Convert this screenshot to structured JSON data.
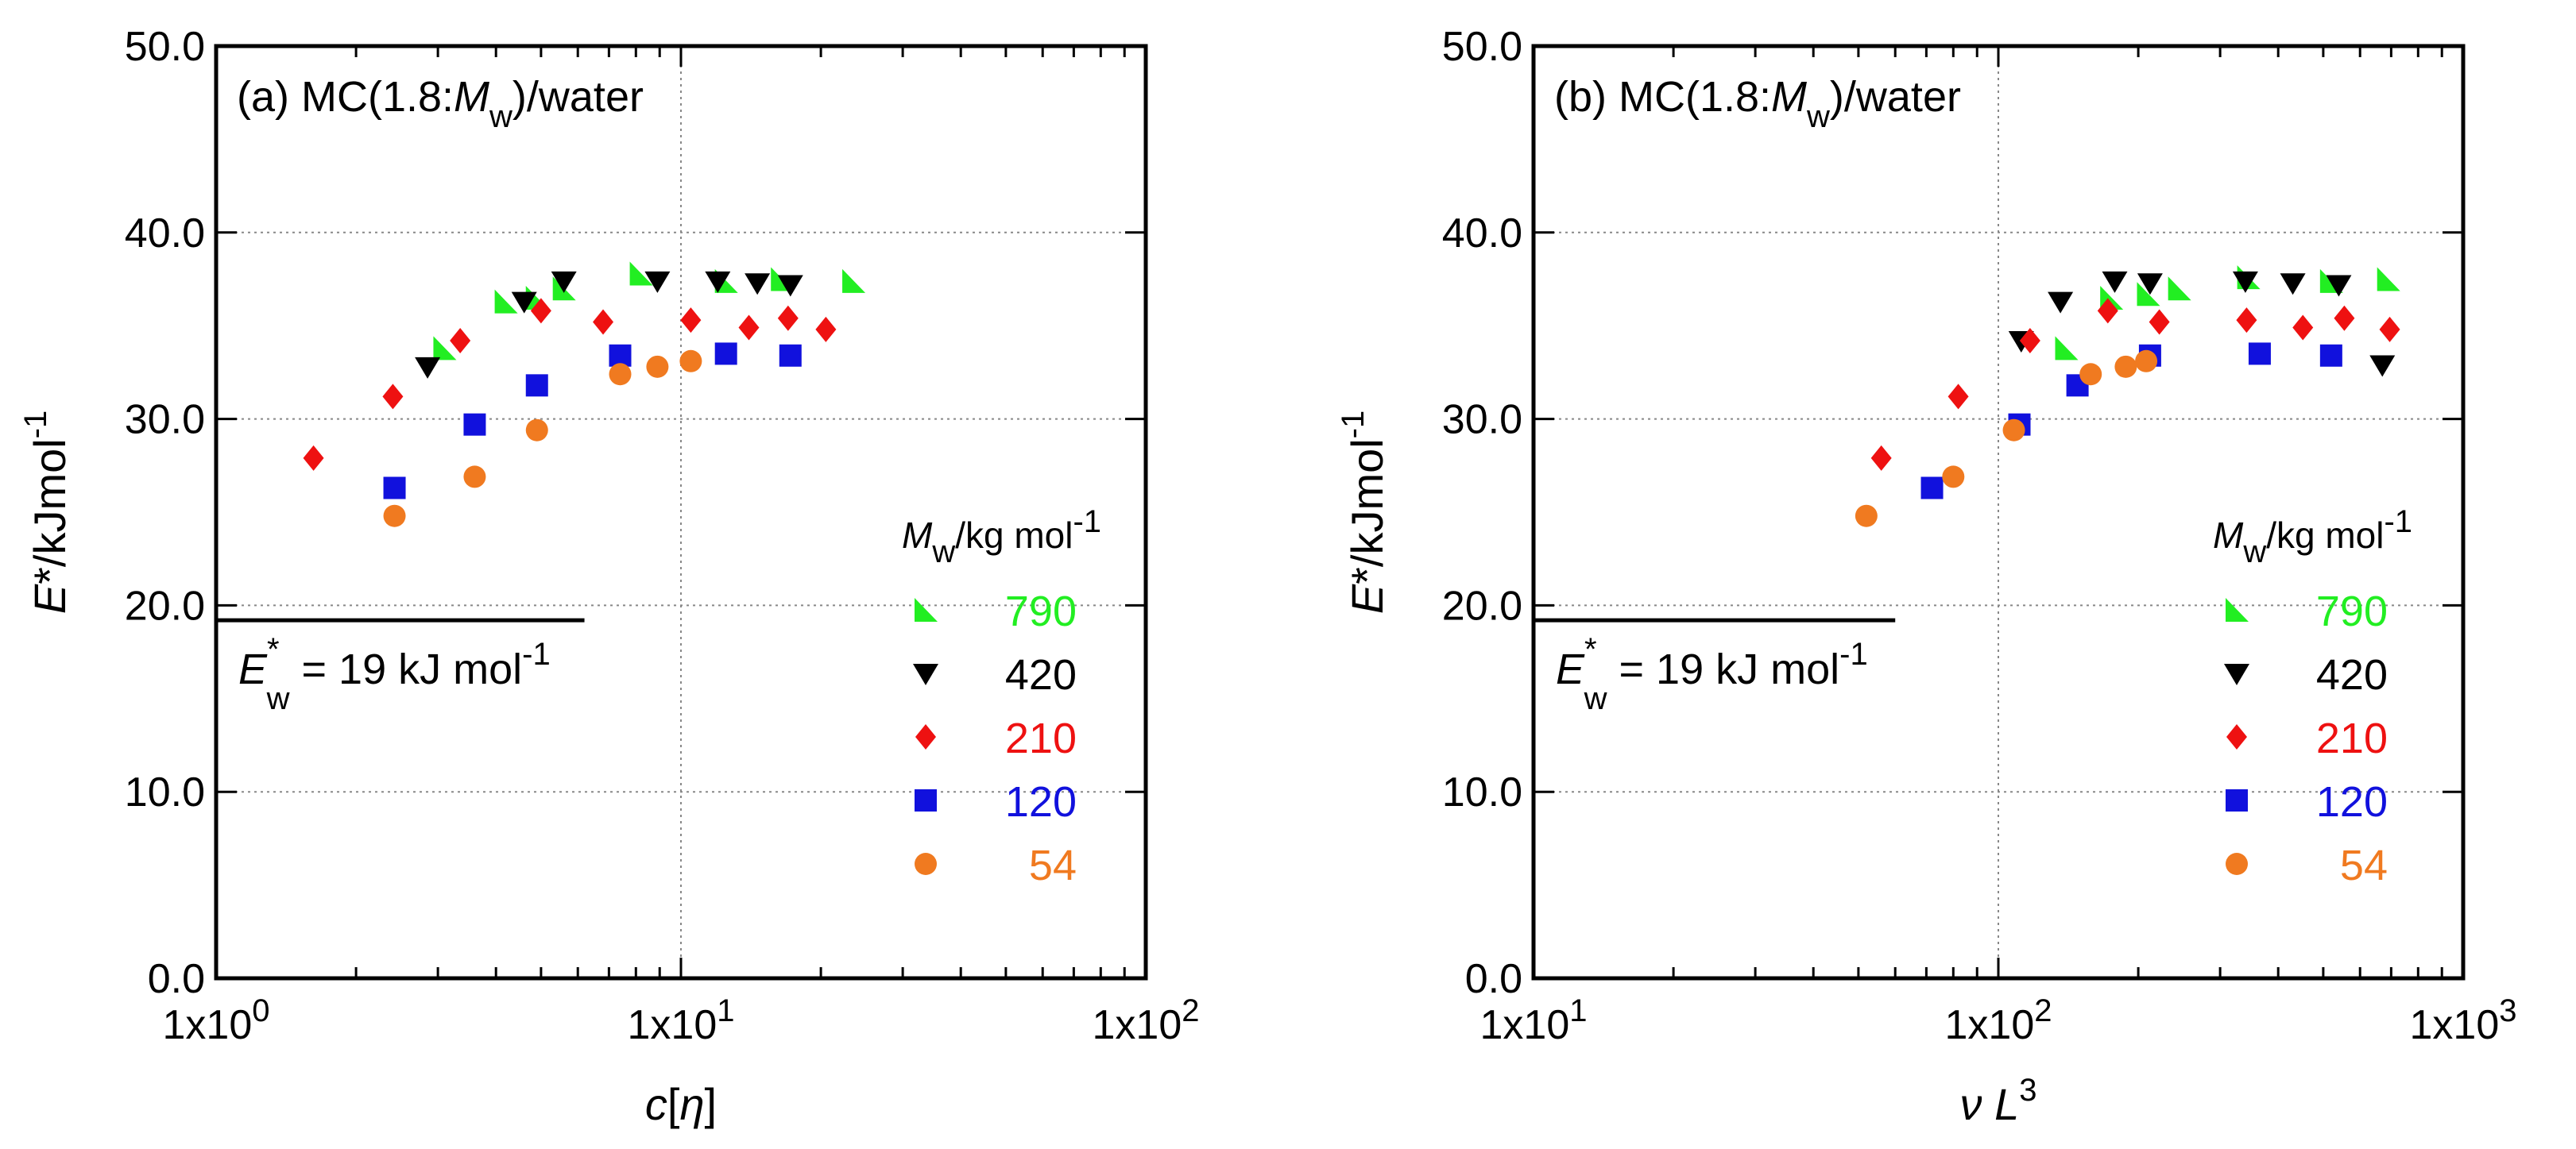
{
  "chart_data": [
    {
      "type": "scatter",
      "panel_label": "(a) MC(1.8:",
      "panel_label_var": "M",
      "panel_label_sub": "w",
      "panel_label_end": ")/water",
      "x_scale": "log",
      "xlim": [
        1,
        100
      ],
      "ylim": [
        0,
        50
      ],
      "xlabel": "c[",
      "xlabel_var": "η",
      "xlabel_end": "]",
      "ylabel": "E*/kJmol",
      "ylabel_sup": "-1",
      "x_ticks": [
        1,
        10,
        100
      ],
      "x_tick_labels": [
        "1x10",
        "1x10",
        "1x10"
      ],
      "x_tick_exps": [
        "0",
        "1",
        "2"
      ],
      "y_ticks": [
        0,
        10,
        20,
        30,
        40,
        50
      ],
      "y_tick_labels": [
        "0.0",
        "10.0",
        "20.0",
        "30.0",
        "40.0",
        "50.0"
      ],
      "reference": {
        "value": 19.2,
        "x_end": 6.2,
        "label": "E",
        "label_sup": "*",
        "label_sub": "w",
        "label_rest": " = 19 kJ mol",
        "label_rest_sup": "-1"
      },
      "legend_title": "/kg mol",
      "legend_title_var": "M",
      "legend_title_sub": "w",
      "legend_title_sup": "-1",
      "series": [
        {
          "name": "790",
          "marker": "triangle-right",
          "color": "#22ee22",
          "x": [
            3.1,
            4.2,
            4.9,
            5.6,
            8.2,
            12.5,
            16.5,
            23.5
          ],
          "y": [
            33.8,
            36.3,
            36.5,
            37.0,
            37.8,
            37.4,
            37.5,
            37.4
          ]
        },
        {
          "name": "420",
          "marker": "triangle-down",
          "color": "#000000",
          "x": [
            2.85,
            4.6,
            5.6,
            8.9,
            12.0,
            14.6,
            17.2
          ],
          "y": [
            32.8,
            36.3,
            37.4,
            37.4,
            37.4,
            37.3,
            37.2
          ]
        },
        {
          "name": "210",
          "marker": "diamond",
          "color": "#ee1111",
          "x": [
            1.62,
            2.4,
            3.35,
            5.0,
            6.8,
            10.5,
            14.0,
            17.0,
            20.5
          ],
          "y": [
            27.9,
            31.2,
            34.2,
            35.8,
            35.2,
            35.3,
            34.9,
            35.4,
            34.8
          ]
        },
        {
          "name": "120",
          "marker": "square",
          "color": "#1111dd",
          "x": [
            2.42,
            3.6,
            4.9,
            7.4,
            12.5,
            17.2
          ],
          "y": [
            26.3,
            29.7,
            31.8,
            33.4,
            33.5,
            33.4
          ]
        },
        {
          "name": "54",
          "marker": "circle",
          "color": "#f07a20",
          "x": [
            2.42,
            3.6,
            4.9,
            7.4,
            8.9,
            10.5
          ],
          "y": [
            24.8,
            26.9,
            29.4,
            32.4,
            32.8,
            33.1
          ]
        }
      ]
    },
    {
      "type": "scatter",
      "panel_label": "(b) MC(1.8:",
      "panel_label_var": "M",
      "panel_label_sub": "w",
      "panel_label_end": ")/water",
      "x_scale": "log",
      "xlim": [
        10,
        1000
      ],
      "ylim": [
        0,
        50
      ],
      "xlabel": "ν",
      "xlabel_var": "L",
      "xlabel_end": "",
      "xlabel_sup": "3",
      "ylabel": "E*/kJmol",
      "ylabel_sup": "-1",
      "x_ticks": [
        10,
        100,
        1000
      ],
      "x_tick_labels": [
        "1x10",
        "1x10",
        "1x10"
      ],
      "x_tick_exps": [
        "1",
        "2",
        "3"
      ],
      "y_ticks": [
        0,
        10,
        20,
        30,
        40,
        50
      ],
      "y_tick_labels": [
        "0.0",
        "10.0",
        "20.0",
        "30.0",
        "40.0",
        "50.0"
      ],
      "reference": {
        "value": 19.2,
        "x_end": 60,
        "label": "E",
        "label_sup": "*",
        "label_sub": "w",
        "label_rest": " = 19 kJ mol",
        "label_rest_sup": "-1"
      },
      "legend_title": "/kg mol",
      "legend_title_var": "M",
      "legend_title_sub": "w",
      "legend_title_sup": "-1",
      "series": [
        {
          "name": "790",
          "marker": "triangle-right",
          "color": "#22ee22",
          "x": [
            140,
            175,
            210,
            245,
            345,
            520,
            690
          ],
          "y": [
            33.8,
            36.5,
            36.7,
            37.0,
            37.6,
            37.4,
            37.5
          ]
        },
        {
          "name": "420",
          "marker": "triangle-down",
          "color": "#000000",
          "x": [
            112,
            136,
            178,
            212,
            340,
            430,
            540,
            670
          ],
          "y": [
            34.2,
            36.3,
            37.4,
            37.3,
            37.4,
            37.3,
            37.2,
            32.9
          ]
        },
        {
          "name": "210",
          "marker": "diamond",
          "color": "#ee1111",
          "x": [
            56,
            82,
            117,
            172,
            222,
            342,
            452,
            555,
            695
          ],
          "y": [
            27.9,
            31.2,
            34.2,
            35.8,
            35.2,
            35.3,
            34.9,
            35.4,
            34.8
          ]
        },
        {
          "name": "120",
          "marker": "square",
          "color": "#1111dd",
          "x": [
            72,
            111,
            148,
            212,
            365,
            520
          ],
          "y": [
            26.3,
            29.7,
            31.8,
            33.4,
            33.5,
            33.4
          ]
        },
        {
          "name": "54",
          "marker": "circle",
          "color": "#f07a20",
          "x": [
            52,
            80,
            108,
            158,
            188,
            208
          ],
          "y": [
            24.8,
            26.9,
            29.4,
            32.4,
            32.8,
            33.1
          ]
        }
      ]
    }
  ]
}
